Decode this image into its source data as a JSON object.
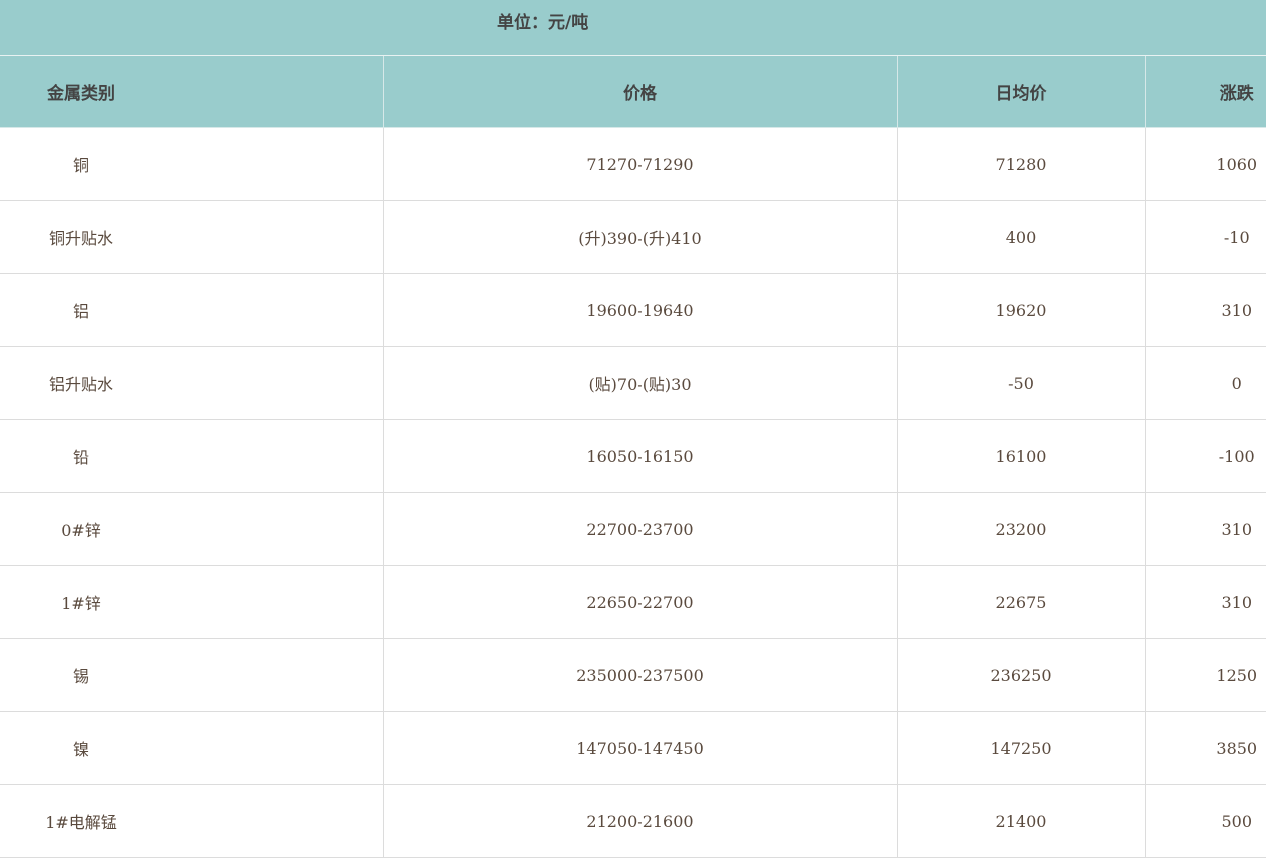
{
  "unit_label": "单位：元/吨",
  "headers": [
    "金属类别",
    "价格",
    "日均价",
    "涨跌"
  ],
  "rows": [
    {
      "metal": "铜",
      "price": "71270-71290",
      "avg": "71280",
      "change": "1060"
    },
    {
      "metal": "铜升贴水",
      "price": "(升)390-(升)410",
      "avg": "400",
      "change": "-10"
    },
    {
      "metal": "铝",
      "price": "19600-19640",
      "avg": "19620",
      "change": "310"
    },
    {
      "metal": "铝升贴水",
      "price": "(贴)70-(贴)30",
      "avg": "-50",
      "change": "0"
    },
    {
      "metal": "铅",
      "price": "16050-16150",
      "avg": "16100",
      "change": "-100"
    },
    {
      "metal": "0#锌",
      "price": "22700-23700",
      "avg": "23200",
      "change": "310"
    },
    {
      "metal": "1#锌",
      "price": "22650-22700",
      "avg": "22675",
      "change": "310"
    },
    {
      "metal": "锡",
      "price": "235000-237500",
      "avg": "236250",
      "change": "1250"
    },
    {
      "metal": "镍",
      "price": "147050-147450",
      "avg": "147250",
      "change": "3850"
    },
    {
      "metal": "1#电解锰",
      "price": "21200-21600",
      "avg": "21400",
      "change": "500"
    }
  ],
  "colors": {
    "header_bg": "#99cccc",
    "border": "#dcdcdc"
  }
}
